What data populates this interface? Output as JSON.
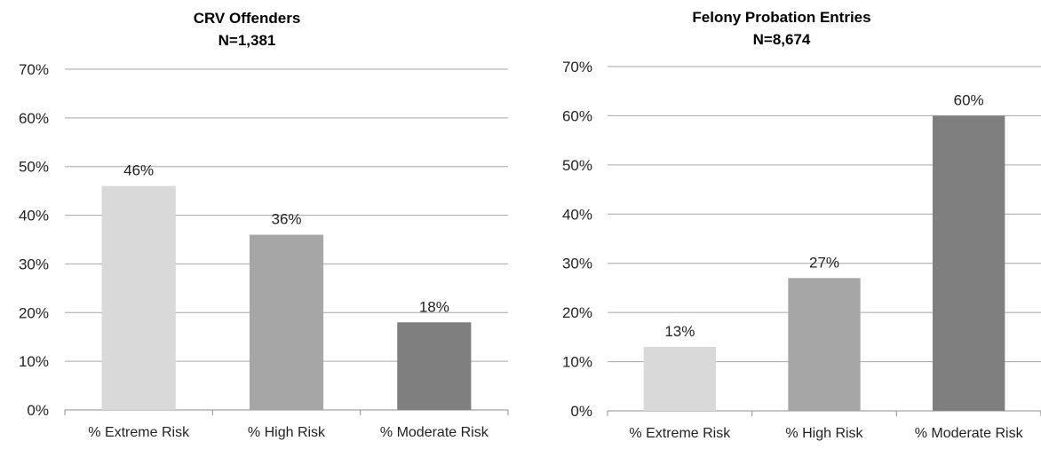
{
  "chart_data": [
    {
      "type": "bar",
      "title": "CRV Offenders",
      "subtitle": "N=1,381",
      "categories": [
        "% Extreme Risk",
        "% High Risk",
        "% Moderate Risk"
      ],
      "values": [
        46,
        36,
        18
      ],
      "value_labels": [
        "46%",
        "36%",
        "18%"
      ],
      "colors": [
        "#d9d9d9",
        "#a6a6a6",
        "#7f7f7f"
      ],
      "ylim": [
        0,
        70
      ],
      "yticks": [
        0,
        10,
        20,
        30,
        40,
        50,
        60,
        70
      ],
      "ytick_labels": [
        "0%",
        "10%",
        "20%",
        "30%",
        "40%",
        "50%",
        "60%",
        "70%"
      ],
      "grid": true,
      "legend": "none"
    },
    {
      "type": "bar",
      "title": "Felony Probation Entries",
      "subtitle": "N=8,674",
      "categories": [
        "% Extreme Risk",
        "% High Risk",
        "% Moderate Risk"
      ],
      "values": [
        13,
        27,
        60
      ],
      "value_labels": [
        "13%",
        "27%",
        "60%"
      ],
      "colors": [
        "#d9d9d9",
        "#a6a6a6",
        "#7f7f7f"
      ],
      "ylim": [
        0,
        70
      ],
      "yticks": [
        0,
        10,
        20,
        30,
        40,
        50,
        60,
        70
      ],
      "ytick_labels": [
        "0%",
        "10%",
        "20%",
        "30%",
        "40%",
        "50%",
        "60%",
        "70%"
      ],
      "grid": true,
      "legend": "none"
    }
  ]
}
